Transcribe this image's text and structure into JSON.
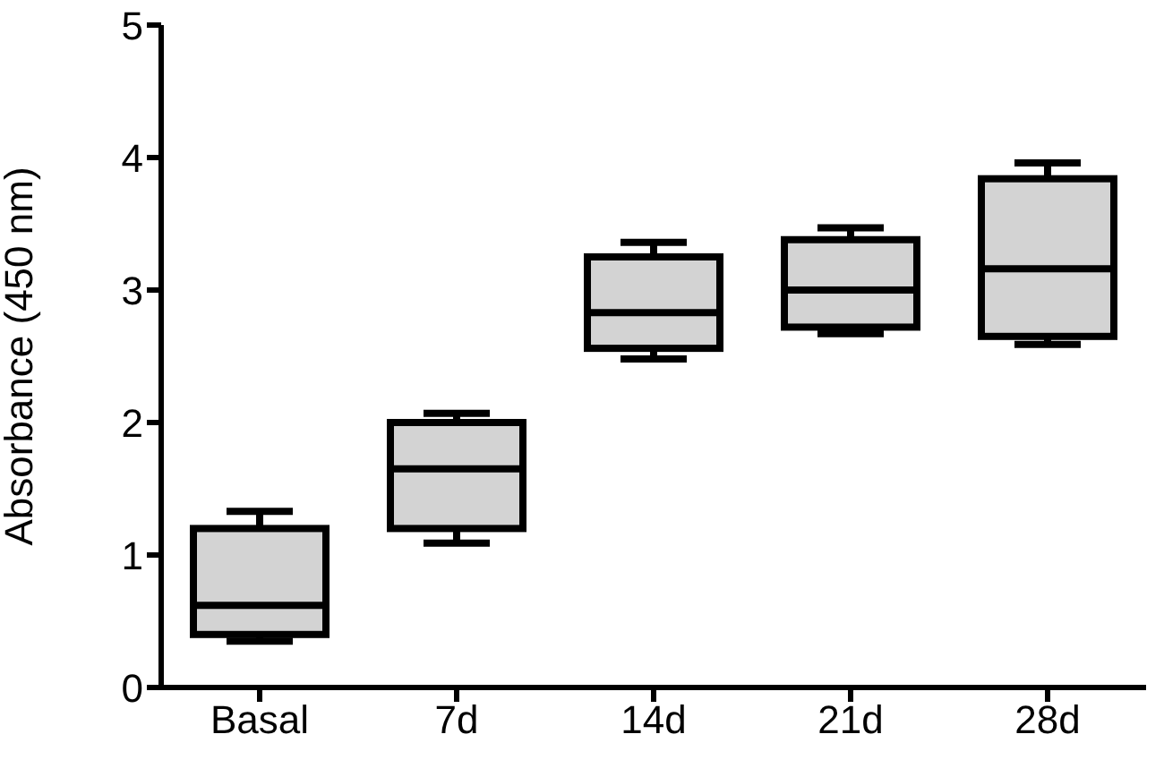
{
  "chart_data": {
    "type": "box",
    "ylabel": "Absorbance (450 nm)",
    "categories": [
      "Basal",
      "7d",
      "14d",
      "21d",
      "28d"
    ],
    "color": "#d3d3d3",
    "ylim": [
      0,
      5
    ],
    "yticks": [
      0,
      1,
      2,
      3,
      4,
      5
    ],
    "grid": false,
    "legend": false,
    "boxes": [
      {
        "low": 0.35,
        "q1": 0.4,
        "median": 0.62,
        "q3": 1.2,
        "high": 1.33
      },
      {
        "low": 1.09,
        "q1": 1.2,
        "median": 1.65,
        "q3": 2.0,
        "high": 2.07
      },
      {
        "low": 2.48,
        "q1": 2.56,
        "median": 2.83,
        "q3": 3.25,
        "high": 3.36
      },
      {
        "low": 2.67,
        "q1": 2.72,
        "median": 3.0,
        "q3": 3.38,
        "high": 3.47
      },
      {
        "low": 2.59,
        "q1": 2.65,
        "median": 3.16,
        "q3": 3.84,
        "high": 3.96
      }
    ]
  }
}
